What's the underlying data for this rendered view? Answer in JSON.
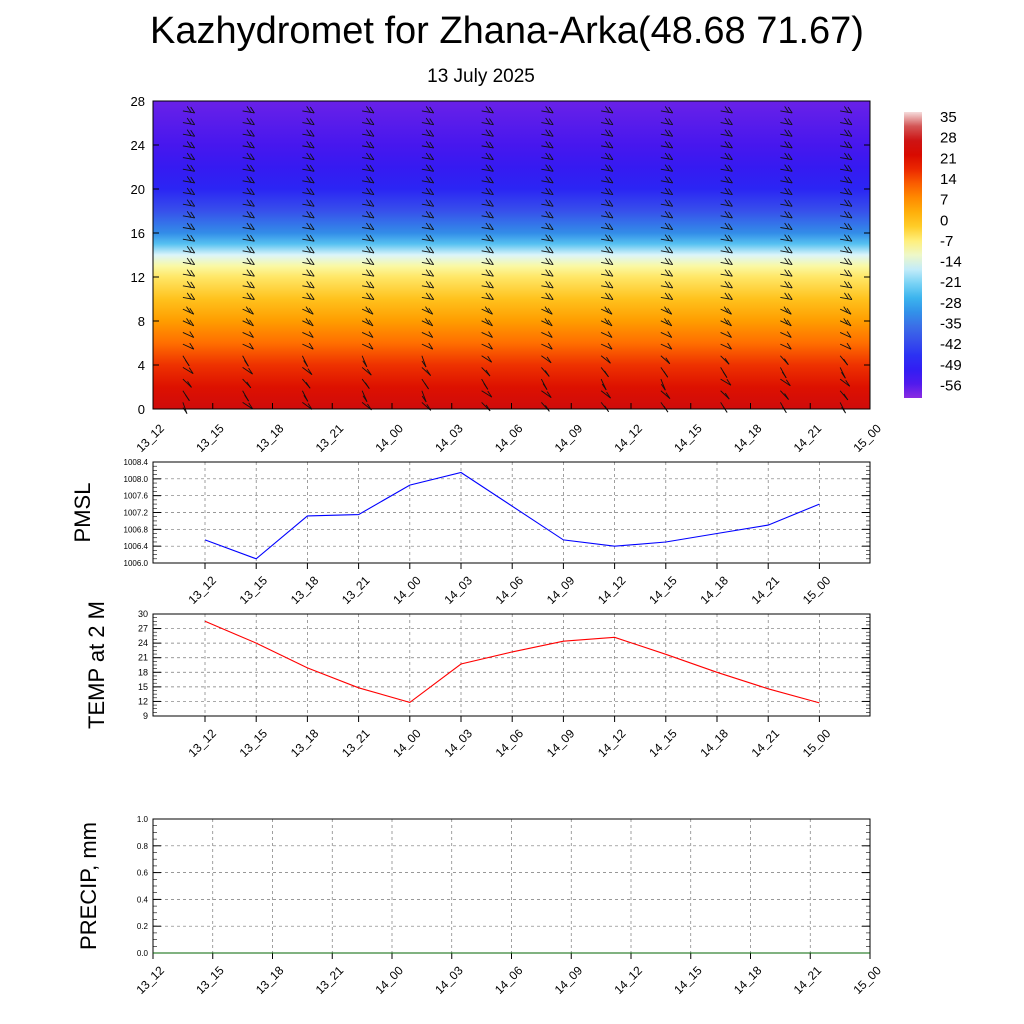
{
  "title": "Kazhydromet for Zhana-Arka(48.68 71.67)",
  "subtitle": "13 July 2025",
  "chart_data": [
    {
      "type": "heatmap",
      "description": "Temperature vs height cross-section with wind barbs",
      "xlabel": "",
      "ylabel": "",
      "x_ticks": [
        "13_12",
        "13_15",
        "13_18",
        "13_21",
        "14_00",
        "14_03",
        "14_06",
        "14_09",
        "14_12",
        "14_15",
        "14_18",
        "14_21",
        "15_00"
      ],
      "y_ticks": [
        0,
        4,
        8,
        12,
        16,
        20,
        24,
        28
      ],
      "ylim": [
        0,
        28
      ],
      "colorbar_labels": [
        35,
        28,
        21,
        14,
        7,
        0,
        -7,
        -14,
        -21,
        -28,
        -35,
        -42,
        -49,
        -56
      ],
      "temperature_profile": [
        {
          "height": 0,
          "temp": 30
        },
        {
          "height": 2,
          "temp": 25
        },
        {
          "height": 4,
          "temp": 20
        },
        {
          "height": 6,
          "temp": 14
        },
        {
          "height": 8,
          "temp": 8
        },
        {
          "height": 10,
          "temp": 2
        },
        {
          "height": 12,
          "temp": -4
        },
        {
          "height": 13,
          "temp": -8
        },
        {
          "height": 14,
          "temp": -14
        },
        {
          "height": 15,
          "temp": -24
        },
        {
          "height": 16,
          "temp": -32
        },
        {
          "height": 18,
          "temp": -42
        },
        {
          "height": 20,
          "temp": -50
        },
        {
          "height": 22,
          "temp": -54
        },
        {
          "height": 24,
          "temp": -57
        },
        {
          "height": 28,
          "temp": -60
        }
      ]
    },
    {
      "type": "line",
      "ylabel": "PMSL",
      "x_ticks": [
        "13_12",
        "13_15",
        "13_18",
        "13_21",
        "14_00",
        "14_03",
        "14_06",
        "14_09",
        "14_12",
        "14_15",
        "14_18",
        "14_21",
        "15_00"
      ],
      "y_ticks": [
        "1006.0",
        "1006.4",
        "1006.8",
        "1007.2",
        "1007.6",
        "1008.0",
        "1008.4"
      ],
      "ylim": [
        1006.0,
        1008.4
      ],
      "color": "#0000ff",
      "values": [
        1006.55,
        1006.1,
        1007.12,
        1007.15,
        1007.85,
        1008.15,
        1007.35,
        1006.55,
        1006.4,
        1006.5,
        1006.7,
        1006.9,
        1007.4
      ]
    },
    {
      "type": "line",
      "ylabel": "TEMP at 2 M",
      "x_ticks": [
        "13_12",
        "13_15",
        "13_18",
        "13_21",
        "14_00",
        "14_03",
        "14_06",
        "14_09",
        "14_12",
        "14_15",
        "14_18",
        "14_21",
        "15_00"
      ],
      "y_ticks": [
        "9",
        "12",
        "15",
        "18",
        "21",
        "24",
        "27",
        "30"
      ],
      "ylim": [
        9,
        30
      ],
      "color": "#ff0000",
      "values": [
        28.5,
        24,
        18.9,
        14.8,
        11.8,
        19.7,
        22.2,
        24.4,
        25.2,
        21.7,
        18,
        14.6,
        11.7
      ]
    },
    {
      "type": "line",
      "ylabel": "PRECIP, mm",
      "x_ticks": [
        "13_12",
        "13_15",
        "13_18",
        "13_21",
        "14_00",
        "14_03",
        "14_06",
        "14_09",
        "14_12",
        "14_15",
        "14_18",
        "14_21",
        "15_00"
      ],
      "y_ticks": [
        "0.0",
        "0.2",
        "0.4",
        "0.6",
        "0.8",
        "1.0"
      ],
      "ylim": [
        0,
        1
      ],
      "color": "#006400",
      "values": [
        0,
        0,
        0,
        0,
        0,
        0,
        0,
        0,
        0,
        0,
        0,
        0,
        0
      ]
    }
  ]
}
